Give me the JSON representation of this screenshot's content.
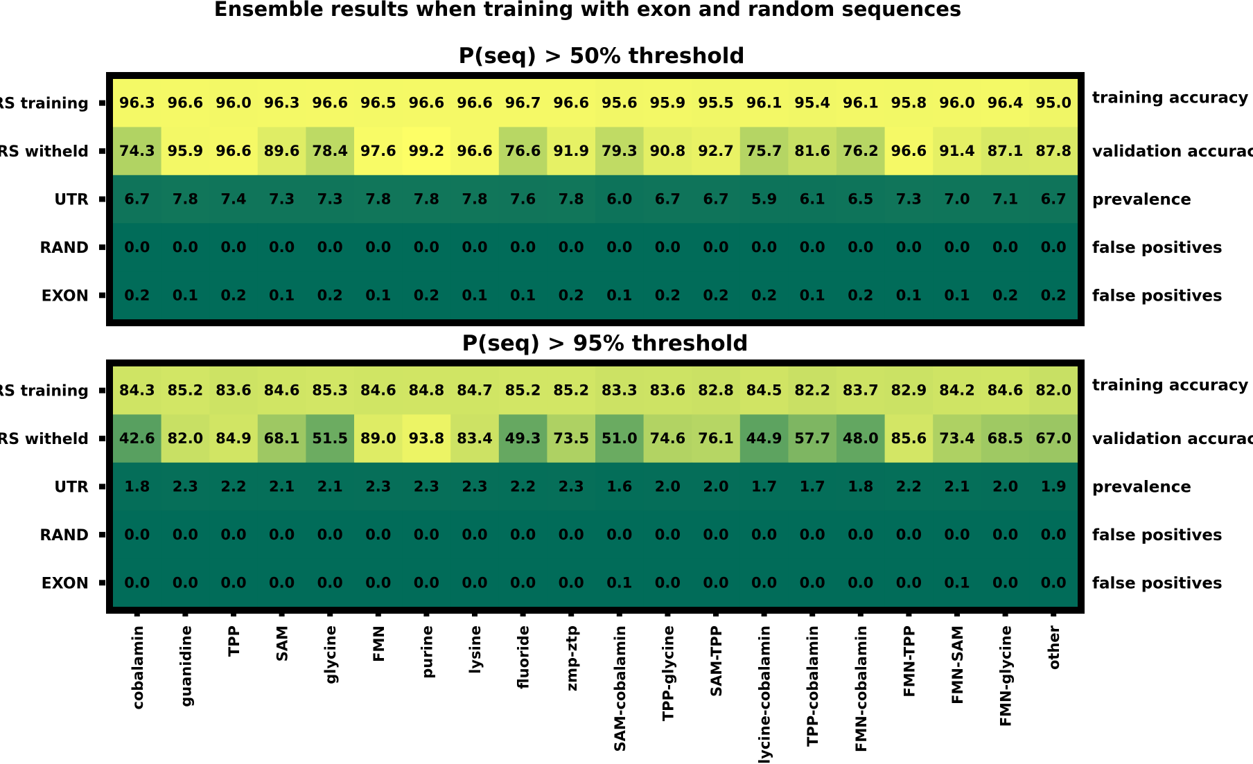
{
  "chart_data": {
    "type": "heatmap",
    "title": "Ensemble results when training with exon and random sequences",
    "columns": [
      "cobalamin",
      "guanidine",
      "TPP",
      "SAM",
      "glycine",
      "FMN",
      "purine",
      "lysine",
      "fluoride",
      "zmp-ztp",
      "SAM-cobalamin",
      "TPP-glycine",
      "SAM-TPP",
      "glycine-cobalamin",
      "TPP-cobalamin",
      "FMN-cobalamin",
      "FMN-TPP",
      "FMN-SAM",
      "FMN-glycine",
      "other"
    ],
    "rows": [
      "RS training",
      "RS witheld",
      "UTR",
      "RAND",
      "EXON"
    ],
    "metrics": [
      "training accuracy",
      "validation accuracy",
      "prevalence",
      "false positives",
      "false positives"
    ],
    "color_scale": {
      "low": "#016c59",
      "mid": "#67a961",
      "high": "#ffff66",
      "range": [
        0,
        100
      ]
    },
    "panels": [
      {
        "title": "P(seq) > 50% threshold",
        "values": [
          [
            96.3,
            96.6,
            96.0,
            96.3,
            96.6,
            96.5,
            96.6,
            96.6,
            96.7,
            96.6,
            95.6,
            95.9,
            95.5,
            96.1,
            95.4,
            96.1,
            95.8,
            96.0,
            96.4,
            95.0
          ],
          [
            74.3,
            95.9,
            96.6,
            89.6,
            78.4,
            97.6,
            99.2,
            96.6,
            76.6,
            91.9,
            79.3,
            90.8,
            92.7,
            75.7,
            81.6,
            76.2,
            96.6,
            91.4,
            87.1,
            87.8
          ],
          [
            6.7,
            7.8,
            7.4,
            7.3,
            7.3,
            7.8,
            7.8,
            7.8,
            7.6,
            7.8,
            6.0,
            6.7,
            6.7,
            5.9,
            6.1,
            6.5,
            7.3,
            7.0,
            7.1,
            6.7
          ],
          [
            0.0,
            0.0,
            0.0,
            0.0,
            0.0,
            0.0,
            0.0,
            0.0,
            0.0,
            0.0,
            0.0,
            0.0,
            0.0,
            0.0,
            0.0,
            0.0,
            0.0,
            0.0,
            0.0,
            0.0
          ],
          [
            0.2,
            0.1,
            0.2,
            0.1,
            0.2,
            0.1,
            0.2,
            0.1,
            0.1,
            0.2,
            0.1,
            0.2,
            0.2,
            0.2,
            0.1,
            0.2,
            0.1,
            0.1,
            0.2,
            0.2
          ]
        ]
      },
      {
        "title": "P(seq) > 95% threshold",
        "values": [
          [
            84.3,
            85.2,
            83.6,
            84.6,
            85.3,
            84.6,
            84.8,
            84.7,
            85.2,
            85.2,
            83.3,
            83.6,
            82.8,
            84.5,
            82.2,
            83.7,
            82.9,
            84.2,
            84.6,
            82.0
          ],
          [
            42.6,
            82.0,
            84.9,
            68.1,
            51.5,
            89.0,
            93.8,
            83.4,
            49.3,
            73.5,
            51.0,
            74.6,
            76.1,
            44.9,
            57.7,
            48.0,
            85.6,
            73.4,
            68.5,
            67.0
          ],
          [
            1.8,
            2.3,
            2.2,
            2.1,
            2.1,
            2.3,
            2.3,
            2.3,
            2.2,
            2.3,
            1.6,
            2.0,
            2.0,
            1.7,
            1.7,
            1.8,
            2.2,
            2.1,
            2.0,
            1.9
          ],
          [
            0.0,
            0.0,
            0.0,
            0.0,
            0.0,
            0.0,
            0.0,
            0.0,
            0.0,
            0.0,
            0.0,
            0.0,
            0.0,
            0.0,
            0.0,
            0.0,
            0.0,
            0.0,
            0.0,
            0.0
          ],
          [
            0.0,
            0.0,
            0.0,
            0.0,
            0.0,
            0.0,
            0.0,
            0.0,
            0.0,
            0.0,
            0.1,
            0.0,
            0.0,
            0.0,
            0.0,
            0.0,
            0.0,
            0.1,
            0.0,
            0.0
          ]
        ]
      }
    ]
  }
}
